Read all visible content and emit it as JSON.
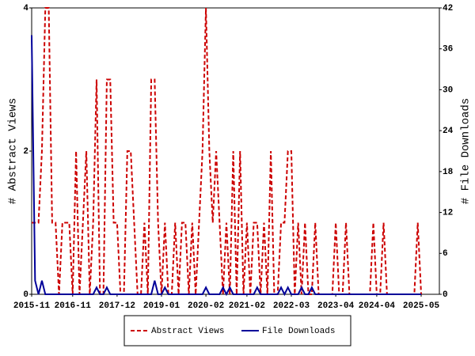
{
  "chart_data": {
    "type": "line",
    "ylabel": "# Abstract Views",
    "y2label": "# File Downloads",
    "categories": [
      "2015-11",
      null,
      null,
      null,
      null,
      null,
      null,
      null,
      null,
      null,
      null,
      null,
      "2016-11",
      null,
      null,
      null,
      null,
      null,
      null,
      null,
      null,
      null,
      null,
      null,
      null,
      "2017-12",
      null,
      null,
      null,
      null,
      null,
      null,
      null,
      null,
      null,
      null,
      null,
      null,
      "2019-01",
      null,
      null,
      null,
      null,
      null,
      null,
      null,
      null,
      null,
      null,
      null,
      null,
      "2020-02",
      null,
      null,
      null,
      null,
      null,
      null,
      null,
      null,
      null,
      null,
      null,
      "2021-02",
      null,
      null,
      null,
      null,
      null,
      null,
      null,
      null,
      null,
      null,
      null,
      null,
      "2022-03",
      null,
      null,
      null,
      null,
      null,
      null,
      null,
      null,
      null,
      null,
      null,
      null,
      "2023-04",
      null,
      null,
      null,
      null,
      null,
      null,
      null,
      null,
      null,
      null,
      null,
      "2024-04",
      null,
      null,
      null,
      null,
      null,
      null,
      null,
      null,
      null,
      null,
      null,
      null,
      "2025-05"
    ],
    "series": [
      {
        "name": "Abstract Views",
        "color": "#cc0000",
        "dashed": true,
        "axis": "y",
        "values": [
          1,
          1,
          1,
          2,
          4,
          4,
          1,
          1,
          0,
          1,
          1,
          1,
          0,
          2,
          0,
          1,
          2,
          0,
          1,
          3,
          0,
          0,
          3,
          3,
          1,
          1,
          0,
          0,
          2,
          2,
          1,
          0,
          0,
          1,
          0,
          3,
          3,
          1,
          0,
          1,
          0,
          0,
          1,
          0,
          1,
          1,
          0,
          1,
          0,
          1,
          2,
          4,
          2,
          1,
          2,
          1,
          0,
          1,
          0,
          2,
          0,
          2,
          0,
          1,
          0,
          1,
          1,
          0,
          1,
          0,
          2,
          0,
          0,
          1,
          1,
          2,
          2,
          0,
          1,
          0,
          1,
          0,
          0,
          1,
          0,
          0,
          0,
          0,
          0,
          1,
          0,
          0,
          1,
          0,
          0,
          0,
          0,
          0,
          0,
          0,
          1,
          0,
          0,
          1,
          0,
          0,
          0,
          0,
          0,
          0,
          0,
          0,
          0,
          1,
          0
        ]
      },
      {
        "name": "File Downloads",
        "color": "#000099",
        "dashed": false,
        "axis": "y2",
        "values": [
          38,
          2,
          0,
          2,
          0,
          0,
          0,
          0,
          0,
          0,
          0,
          0,
          0,
          0,
          0,
          0,
          0,
          0,
          0,
          1,
          0,
          0,
          1,
          0,
          0,
          0,
          0,
          0,
          0,
          0,
          0,
          0,
          0,
          0,
          0,
          0,
          2,
          0,
          0,
          1,
          0,
          0,
          0,
          0,
          0,
          0,
          0,
          0,
          0,
          0,
          0,
          1,
          0,
          0,
          0,
          0,
          1,
          0,
          1,
          0,
          0,
          0,
          0,
          0,
          0,
          0,
          1,
          0,
          0,
          0,
          0,
          0,
          0,
          1,
          0,
          1,
          0,
          0,
          0,
          1,
          0,
          0,
          1,
          0,
          0,
          0,
          0,
          0,
          0,
          0,
          0,
          0,
          0,
          0,
          0,
          0,
          0,
          0,
          0,
          0,
          0,
          0,
          0,
          0,
          0,
          0,
          0,
          0,
          0,
          0,
          0,
          0,
          0,
          0,
          0
        ]
      }
    ],
    "ylim": [
      0,
      4
    ],
    "yticks": [
      0,
      2,
      4
    ],
    "y2lim": [
      0,
      42
    ],
    "y2ticks": [
      0,
      6,
      12,
      18,
      24,
      30,
      36,
      42
    ],
    "grid": false,
    "legend": "bottom"
  }
}
